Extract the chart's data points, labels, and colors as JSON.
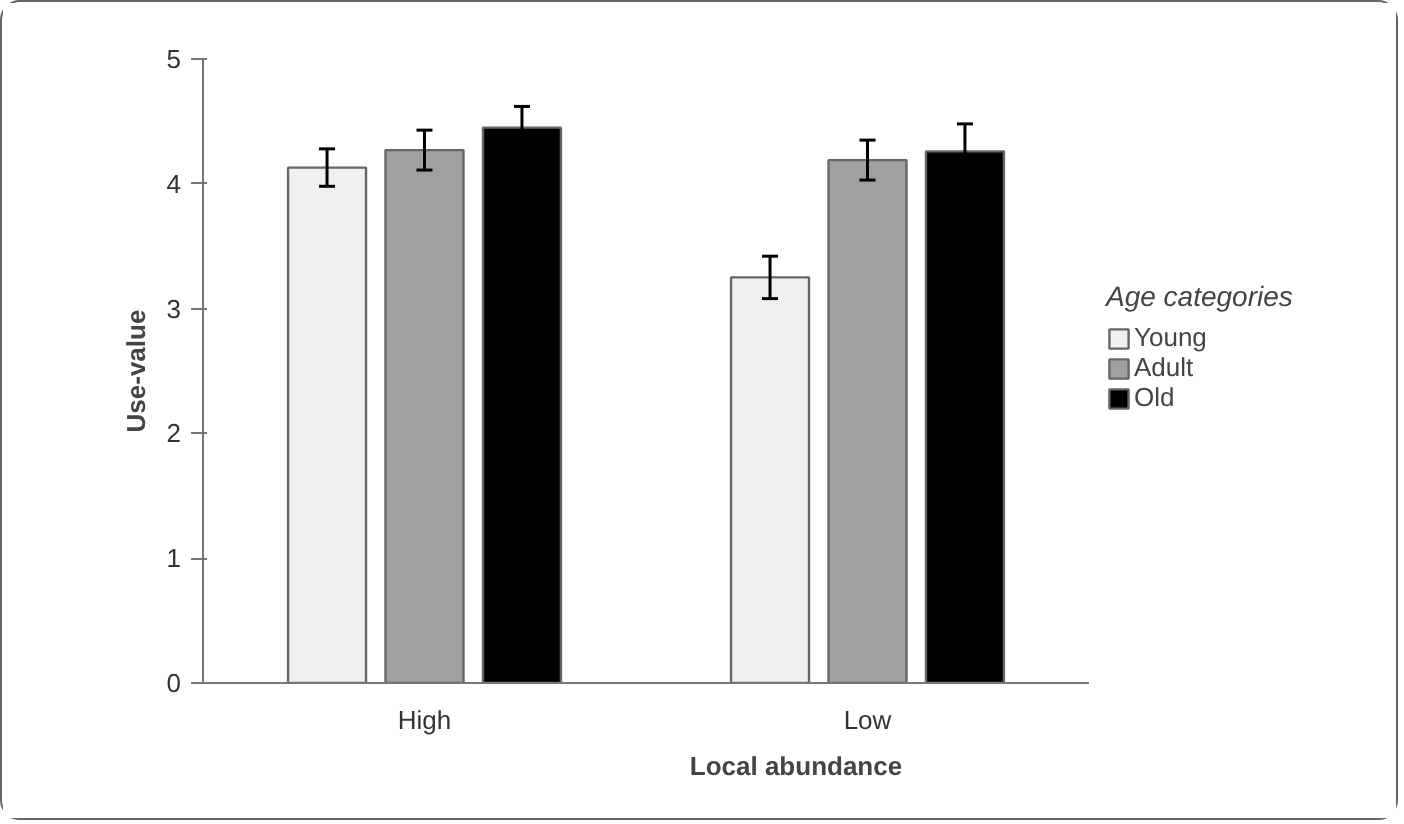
{
  "chart_data": {
    "type": "bar",
    "xlabel": "Local abundance",
    "ylabel": "Use-value",
    "legend_title": "Age categories",
    "categories": [
      "High",
      "Low"
    ],
    "series": [
      {
        "name": "Young",
        "color": "#f0f0f0",
        "values": [
          4.13,
          3.25
        ],
        "errors": [
          0.15,
          0.17
        ]
      },
      {
        "name": "Adult",
        "color": "#a0a0a0",
        "values": [
          4.27,
          4.19
        ],
        "errors": [
          0.16,
          0.16
        ]
      },
      {
        "name": "Old",
        "color": "#000000",
        "values": [
          4.45,
          4.26
        ],
        "errors": [
          0.17,
          0.22
        ]
      }
    ],
    "ylim": [
      0,
      5
    ],
    "yticks": [
      0,
      1,
      2,
      3,
      4,
      5
    ],
    "grid": false,
    "legend": "right"
  }
}
